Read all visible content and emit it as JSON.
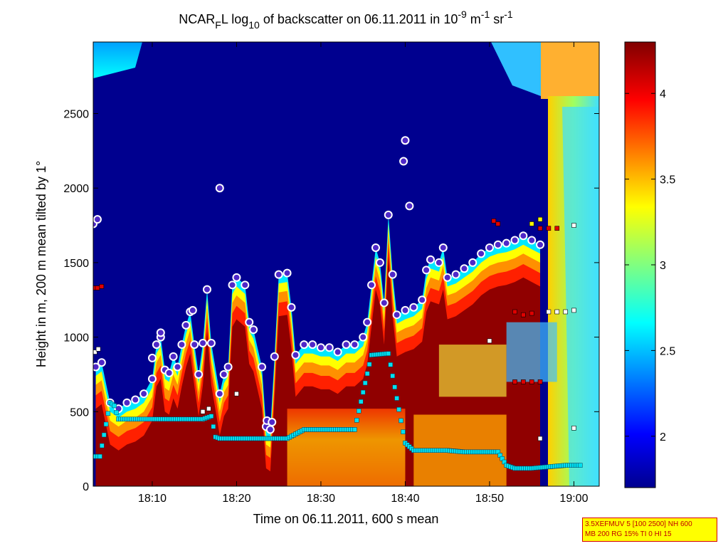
{
  "chart_data": {
    "type": "heatmap",
    "title": {
      "prefix": "NCAR",
      "sub_f": "F",
      "mid": "L log",
      "sub_10": "10",
      "rest": " of backscatter on 06.11.2011 in 10",
      "sup_9": "-9",
      "unit_m": " m",
      "sup_1": "-1",
      "unit_sr": " sr",
      "sup_1b": "-1"
    },
    "xlabel": "Time on 06.11.2011, 600 s mean",
    "ylabel": "Height in m, 200 m mean tilted by 1°",
    "x_ticks": [
      "18:10",
      "18:20",
      "18:30",
      "18:40",
      "18:50",
      "19:00"
    ],
    "x_tick_minutes": [
      10,
      20,
      30,
      40,
      50,
      60
    ],
    "xlim_minutes": [
      3,
      63
    ],
    "y_ticks": [
      "0",
      "500",
      "1000",
      "1500",
      "2000",
      "2500"
    ],
    "y_tick_values": [
      0,
      500,
      1000,
      1500,
      2000,
      2500
    ],
    "ylim": [
      0,
      2980
    ],
    "colorbar": {
      "ticks": [
        "2",
        "2.5",
        "3",
        "3.5",
        "4"
      ],
      "tick_values": [
        2,
        2.5,
        3,
        3.5,
        4
      ],
      "range": [
        1.7,
        4.3
      ],
      "colormap": "jet"
    },
    "boundary_layer_top": [
      [
        3.3,
        800
      ],
      [
        4,
        830
      ],
      [
        5,
        560
      ],
      [
        6,
        520
      ],
      [
        7,
        560
      ],
      [
        8,
        580
      ],
      [
        9,
        620
      ],
      [
        10,
        720
      ],
      [
        10.5,
        950
      ],
      [
        11,
        1000
      ],
      [
        11.5,
        780
      ],
      [
        12,
        760
      ],
      [
        12.5,
        870
      ],
      [
        13,
        800
      ],
      [
        13.5,
        950
      ],
      [
        14,
        1080
      ],
      [
        14.5,
        1170
      ],
      [
        15,
        950
      ],
      [
        15.5,
        750
      ],
      [
        16,
        960
      ],
      [
        16.5,
        1320
      ],
      [
        17,
        960
      ],
      [
        18,
        620
      ],
      [
        18.5,
        750
      ],
      [
        19,
        800
      ],
      [
        19.5,
        1350
      ],
      [
        20,
        1400
      ],
      [
        21,
        1350
      ],
      [
        21.5,
        1100
      ],
      [
        22,
        1050
      ],
      [
        23,
        800
      ],
      [
        23.5,
        400
      ],
      [
        24,
        380
      ],
      [
        24.5,
        870
      ],
      [
        25,
        1420
      ],
      [
        26,
        1430
      ],
      [
        26.5,
        1200
      ],
      [
        27,
        880
      ],
      [
        28,
        950
      ],
      [
        29,
        950
      ],
      [
        30,
        930
      ],
      [
        31,
        930
      ],
      [
        32,
        900
      ],
      [
        33,
        950
      ],
      [
        34,
        950
      ],
      [
        35,
        1000
      ],
      [
        35.5,
        1100
      ],
      [
        36,
        1350
      ],
      [
        36.5,
        1600
      ],
      [
        37,
        1500
      ],
      [
        37.5,
        1230
      ],
      [
        38,
        1820
      ],
      [
        38.5,
        1420
      ],
      [
        39,
        1150
      ],
      [
        40,
        1180
      ],
      [
        41,
        1200
      ],
      [
        42,
        1250
      ],
      [
        42.5,
        1450
      ],
      [
        43,
        1520
      ],
      [
        44,
        1500
      ],
      [
        44.5,
        1600
      ],
      [
        45,
        1400
      ],
      [
        46,
        1420
      ],
      [
        47,
        1460
      ],
      [
        48,
        1500
      ],
      [
        49,
        1560
      ],
      [
        50,
        1600
      ],
      [
        51,
        1620
      ],
      [
        52,
        1630
      ],
      [
        53,
        1650
      ],
      [
        54,
        1680
      ],
      [
        55,
        1650
      ],
      [
        56,
        1620
      ]
    ],
    "markers": {
      "ring_points": [
        [
          3,
          1760
        ],
        [
          3.5,
          1790
        ],
        [
          18,
          2000
        ],
        [
          40,
          2320
        ],
        [
          39.8,
          2180
        ],
        [
          40.5,
          1880
        ],
        [
          10,
          860
        ],
        [
          11,
          1030
        ],
        [
          14.8,
          1180
        ],
        [
          23.6,
          440
        ],
        [
          24.2,
          430
        ]
      ],
      "red_squares": [
        [
          3,
          1330
        ],
        [
          3.5,
          1330
        ],
        [
          4,
          1340
        ],
        [
          50.5,
          1780
        ],
        [
          51,
          1760
        ],
        [
          53,
          1170
        ],
        [
          54,
          1150
        ],
        [
          55,
          1160
        ],
        [
          56,
          1730
        ],
        [
          57,
          1730
        ],
        [
          58,
          1730
        ],
        [
          53,
          700
        ],
        [
          54,
          700
        ],
        [
          55,
          700
        ],
        [
          56,
          700
        ]
      ],
      "yellow_squares": [
        [
          55,
          1760
        ],
        [
          56,
          1790
        ]
      ],
      "white_squares": [
        [
          60,
          1180
        ],
        [
          59,
          1170
        ],
        [
          57,
          1170
        ],
        [
          58,
          1170
        ],
        [
          60,
          1750
        ],
        [
          60,
          390
        ],
        [
          56,
          320
        ],
        [
          50,
          975
        ],
        [
          3.2,
          900
        ],
        [
          3.6,
          920
        ],
        [
          20,
          620
        ],
        [
          16,
          500
        ],
        [
          16.7,
          520
        ]
      ],
      "cyan_low_band": [
        [
          3,
          200
        ],
        [
          3.8,
          200
        ],
        [
          5,
          560
        ],
        [
          5.5,
          540
        ],
        [
          6,
          450
        ],
        [
          8,
          450
        ],
        [
          10,
          450
        ],
        [
          12,
          450
        ],
        [
          14,
          450
        ],
        [
          16,
          450
        ],
        [
          17,
          470
        ],
        [
          17.5,
          330
        ],
        [
          18,
          320
        ],
        [
          20,
          320
        ],
        [
          22,
          320
        ],
        [
          24,
          320
        ],
        [
          26,
          320
        ],
        [
          28,
          380
        ],
        [
          30,
          380
        ],
        [
          32,
          380
        ],
        [
          34,
          380
        ],
        [
          36,
          880
        ],
        [
          38,
          890
        ],
        [
          40,
          290
        ],
        [
          41,
          240
        ],
        [
          43,
          240
        ],
        [
          45,
          240
        ],
        [
          47,
          230
        ],
        [
          49,
          230
        ],
        [
          51,
          230
        ],
        [
          52,
          140
        ],
        [
          53,
          120
        ],
        [
          55,
          120
        ],
        [
          57,
          130
        ],
        [
          59,
          140
        ],
        [
          61,
          140
        ]
      ]
    }
  },
  "info_box": {
    "line1": "3.5XEFMUV 5 [100 2500] NH 600",
    "line2": "MB 200 RG 15% TI 0 HI 15"
  }
}
